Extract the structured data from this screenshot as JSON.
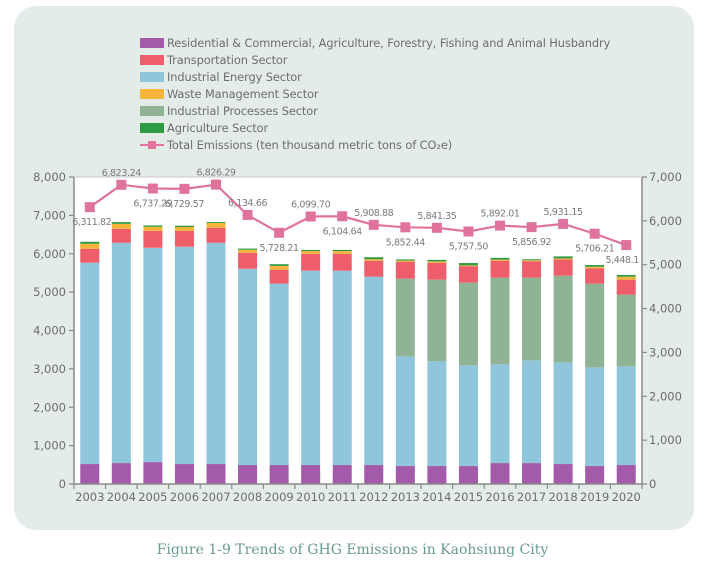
{
  "caption": "Figure 1-9 Trends of GHG Emissions in Kaohsiung City",
  "chart_data": {
    "type": "bar",
    "subtype": "stacked bar with line overlay (dual axis)",
    "title": "Figure 1-9 Trends of GHG Emissions in Kaohsiung City",
    "xlabel": "",
    "ylabel": "",
    "legend_position": "top",
    "categories": [
      "2003",
      "2004",
      "2005",
      "2006",
      "2007",
      "2008",
      "2009",
      "2010",
      "2011",
      "2012",
      "2013",
      "2014",
      "2015",
      "2016",
      "2017",
      "2018",
      "2019",
      "2020"
    ],
    "left_axis": {
      "range": [
        0,
        8000
      ],
      "ticks": [
        "0",
        "1,000",
        "2,000",
        "3,000",
        "4,000",
        "5,000",
        "6,000",
        "7,000",
        "8,000"
      ]
    },
    "right_axis": {
      "range": [
        0,
        7000
      ],
      "ticks": [
        "0",
        "1,000",
        "2,000",
        "3,000",
        "4,000",
        "5,000",
        "6,000",
        "7,000"
      ]
    },
    "grid": false,
    "series": [
      {
        "name": "Residential & Commercial, Agriculture, Forestry, Fishing and Animal Husbandry",
        "color": "#a35aa8",
        "axis": "left",
        "values": [
          520,
          545,
          571,
          520,
          520,
          494,
          494,
          494,
          494,
          494,
          468,
          468,
          468,
          545,
          545,
          520,
          468,
          494
        ]
      },
      {
        "name": "Industrial Energy Sector",
        "color": "#8fc6db",
        "axis": "left",
        "values": [
          5246,
          5741,
          5585,
          5662,
          5766,
          5116,
          4727,
          5064,
          5064,
          4909,
          2857,
          2727,
          2623,
          2572,
          2676,
          2649,
          2571,
          2571
        ]
      },
      {
        "name": "Industrial Processes Sector",
        "color": "#8fb394",
        "axis": "left",
        "values": [
          0,
          0,
          0,
          0,
          0,
          0,
          0,
          0,
          0,
          0,
          2026,
          2130,
          2156,
          2260,
          2156,
          2260,
          2182,
          1870
        ]
      },
      {
        "name": "Transportation Sector",
        "color": "#ee5e6a",
        "axis": "left",
        "values": [
          364,
          363,
          441,
          415,
          389,
          416,
          363,
          442,
          442,
          415,
          441,
          440,
          430,
          440,
          430,
          420,
          400,
          390
        ]
      },
      {
        "name": "Waste Management Sector",
        "color": "#f6b43b",
        "axis": "left",
        "values": [
          130,
          130,
          104,
          100,
          127,
          78,
          100,
          70,
          70,
          40,
          30,
          36,
          20,
          30,
          25,
          30,
          40,
          78
        ]
      },
      {
        "name": "Agriculture Sector",
        "color": "#2f9a44",
        "axis": "left",
        "values": [
          52,
          44,
          36,
          33,
          24,
          31,
          44,
          30,
          31,
          51,
          30,
          40,
          61,
          45,
          25,
          52,
          45,
          45
        ]
      },
      {
        "name": "Total Emissions (ten thousand metric tons of CO₂e)",
        "type": "line",
        "color": "#e0739e",
        "axis": "right",
        "values": [
          6311.82,
          6823.24,
          6737.29,
          6729.57,
          6826.29,
          6134.66,
          5728.21,
          6099.7,
          6104.64,
          5908.88,
          5852.44,
          5841.35,
          5757.5,
          5892.01,
          5856.92,
          5931.15,
          5706.21,
          5448.1
        ],
        "labels": [
          "6,311.82",
          "6,823.24",
          "6,737.29",
          "6,729.57",
          "6,826.29",
          "6,134.66",
          "5,728.21",
          "6,099.70",
          "6,104.64",
          "5,908.88",
          "5,852.44",
          "5,841.35",
          "5,757.50",
          "5,892.01",
          "5,856.92",
          "5,931.15",
          "5,706.21",
          "5,448.1"
        ],
        "label_positions": [
          "below",
          "above",
          "below",
          "below",
          "above",
          "above",
          "below",
          "above",
          "below",
          "above",
          "below",
          "above",
          "below",
          "above",
          "below",
          "above",
          "below",
          "below"
        ]
      }
    ],
    "legend_order": [
      "Residential & Commercial, Agriculture, Forestry, Fishing and Animal Husbandry",
      "Transportation Sector",
      "Industrial Energy Sector",
      "Waste Management Sector",
      "Industrial Processes Sector",
      "Agriculture Sector",
      "Total Emissions (ten thousand metric tons of CO₂e)"
    ]
  },
  "legend": [
    {
      "label": "Residential & Commercial, Agriculture, Forestry, Fishing and Animal Husbandry",
      "color": "#a35aa8",
      "kind": "swatch"
    },
    {
      "label": "Transportation Sector",
      "color": "#ee5e6a",
      "kind": "swatch"
    },
    {
      "label": "Industrial Energy Sector",
      "color": "#8fc6db",
      "kind": "swatch"
    },
    {
      "label": "Waste Management Sector",
      "color": "#f6b43b",
      "kind": "swatch"
    },
    {
      "label": "Industrial Processes Sector",
      "color": "#8fb394",
      "kind": "swatch"
    },
    {
      "label": "Agriculture Sector",
      "color": "#2f9a44",
      "kind": "swatch"
    },
    {
      "label": "Total Emissions (ten thousand metric tons of CO₂e)",
      "color": "#e0739e",
      "kind": "line"
    }
  ]
}
